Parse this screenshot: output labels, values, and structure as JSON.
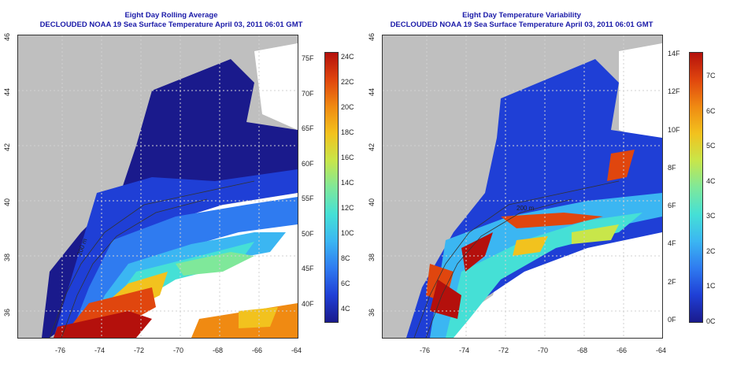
{
  "left_panel": {
    "title_line1": "Eight Day Rolling Average",
    "title_line2": "DECLOUDED NOAA 19 Sea Surface Temperature April 03, 2011 06:01 GMT",
    "colorbar_f": [
      "75F",
      "70F",
      "65F",
      "60F",
      "55F",
      "50F",
      "45F",
      "40F"
    ],
    "colorbar_c": [
      "24C",
      "22C",
      "20C",
      "18C",
      "16C",
      "14C",
      "12C",
      "10C",
      "8C",
      "6C",
      "4C"
    ],
    "colors": [
      "#1a1a8c",
      "#1f3fd6",
      "#2f7bf0",
      "#3bb6f2",
      "#45e0d6",
      "#7fe89a",
      "#c8e64a",
      "#f2c21e",
      "#f08a12",
      "#e0460e",
      "#b4100c"
    ]
  },
  "right_panel": {
    "title_line1": "Eight Day Temperature Variability",
    "title_line2": "DECLOUDED NOAA 19 Sea Surface Temperature April 03, 2011 06:01 GMT",
    "colorbar_f": [
      "14F",
      "12F",
      "10F",
      "8F",
      "6F",
      "4F",
      "2F",
      "0F"
    ],
    "colorbar_c": [
      "7C",
      "6C",
      "5C",
      "4C",
      "3C",
      "2C",
      "1C",
      "0C"
    ],
    "colors": [
      "#1a1a8c",
      "#1f3fd6",
      "#2f7bf0",
      "#3bb6f2",
      "#45e0d6",
      "#7fe89a",
      "#c8e64a",
      "#f2c21e",
      "#f08a12",
      "#e0460e",
      "#b4100c"
    ]
  },
  "axes": {
    "x_ticks": [
      "-76",
      "-74",
      "-72",
      "-70",
      "-68",
      "-66",
      "-64"
    ],
    "y_ticks": [
      "46",
      "44",
      "42",
      "40",
      "38",
      "36"
    ]
  },
  "contour_labels": [
    "200 m",
    "200 m"
  ]
}
